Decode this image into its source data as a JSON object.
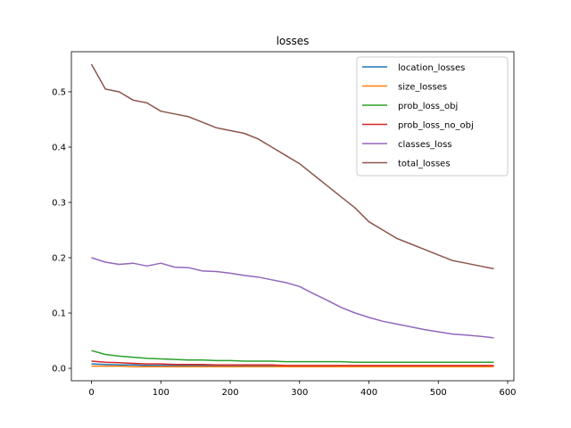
{
  "chart_data": {
    "type": "line",
    "title": "losses",
    "xlabel": "",
    "ylabel": "",
    "xlim": [
      -29,
      609
    ],
    "ylim": [
      -0.0225,
      0.5725
    ],
    "xticks": [
      0,
      100,
      200,
      300,
      400,
      500,
      600
    ],
    "yticks": [
      0.0,
      0.1,
      0.2,
      0.3,
      0.4,
      0.5
    ],
    "xtick_labels": [
      "0",
      "100",
      "200",
      "300",
      "400",
      "500",
      "600"
    ],
    "ytick_labels": [
      "0.0",
      "0.1",
      "0.2",
      "0.3",
      "0.4",
      "0.5"
    ],
    "grid": false,
    "legend": "top-right",
    "x": [
      0,
      20,
      40,
      60,
      80,
      100,
      120,
      140,
      160,
      180,
      200,
      220,
      240,
      260,
      280,
      300,
      320,
      340,
      360,
      380,
      400,
      420,
      440,
      460,
      480,
      500,
      520,
      540,
      560,
      580
    ],
    "series": [
      {
        "name": "location_losses",
        "color": "#1f77b4",
        "values": [
          0.008,
          0.007,
          0.006,
          0.006,
          0.005,
          0.005,
          0.005,
          0.005,
          0.005,
          0.005,
          0.005,
          0.004,
          0.004,
          0.004,
          0.004,
          0.004,
          0.004,
          0.004,
          0.004,
          0.004,
          0.004,
          0.004,
          0.004,
          0.004,
          0.004,
          0.004,
          0.004,
          0.004,
          0.004,
          0.004
        ]
      },
      {
        "name": "size_losses",
        "color": "#ff7f0e",
        "values": [
          0.004,
          0.004,
          0.004,
          0.003,
          0.003,
          0.003,
          0.003,
          0.003,
          0.003,
          0.003,
          0.003,
          0.003,
          0.003,
          0.003,
          0.003,
          0.003,
          0.003,
          0.003,
          0.003,
          0.003,
          0.003,
          0.003,
          0.003,
          0.003,
          0.003,
          0.003,
          0.003,
          0.003,
          0.003,
          0.003
        ]
      },
      {
        "name": "prob_loss_obj",
        "color": "#2ca02c",
        "values": [
          0.032,
          0.025,
          0.022,
          0.02,
          0.018,
          0.017,
          0.016,
          0.015,
          0.015,
          0.014,
          0.014,
          0.013,
          0.013,
          0.013,
          0.012,
          0.012,
          0.012,
          0.012,
          0.012,
          0.011,
          0.011,
          0.011,
          0.011,
          0.011,
          0.011,
          0.011,
          0.011,
          0.011,
          0.011,
          0.011
        ]
      },
      {
        "name": "prob_loss_no_obj",
        "color": "#d62728",
        "values": [
          0.013,
          0.011,
          0.01,
          0.009,
          0.008,
          0.008,
          0.007,
          0.007,
          0.007,
          0.006,
          0.006,
          0.006,
          0.006,
          0.006,
          0.005,
          0.005,
          0.005,
          0.005,
          0.005,
          0.005,
          0.005,
          0.005,
          0.005,
          0.005,
          0.005,
          0.005,
          0.005,
          0.005,
          0.005,
          0.005
        ]
      },
      {
        "name": "classes_loss",
        "color": "#9467bd",
        "values": [
          0.2,
          0.192,
          0.188,
          0.19,
          0.185,
          0.19,
          0.183,
          0.182,
          0.176,
          0.175,
          0.172,
          0.168,
          0.165,
          0.16,
          0.155,
          0.148,
          0.135,
          0.123,
          0.11,
          0.1,
          0.092,
          0.085,
          0.08,
          0.075,
          0.07,
          0.066,
          0.062,
          0.06,
          0.058,
          0.055
        ]
      },
      {
        "name": "total_losses",
        "color": "#8c564b",
        "values": [
          0.55,
          0.505,
          0.5,
          0.485,
          0.48,
          0.465,
          0.46,
          0.455,
          0.445,
          0.435,
          0.43,
          0.425,
          0.415,
          0.4,
          0.385,
          0.37,
          0.35,
          0.33,
          0.31,
          0.29,
          0.265,
          0.25,
          0.235,
          0.225,
          0.215,
          0.205,
          0.195,
          0.19,
          0.185,
          0.18
        ]
      }
    ]
  }
}
